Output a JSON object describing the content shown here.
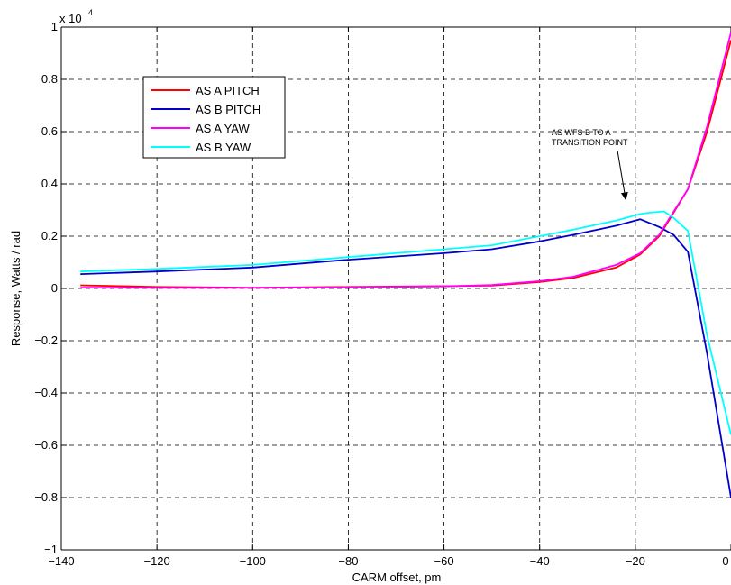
{
  "chart_data": {
    "type": "line",
    "xlabel": "CARM offset, pm",
    "ylabel": "Response, Watts / rad",
    "y_scale_label": "x 10",
    "y_scale_exponent": "4",
    "xlim": [
      -140,
      0
    ],
    "ylim": [
      -10000,
      10000
    ],
    "grid": true,
    "legend_position": "top-left",
    "x_ticks": [
      -140,
      -120,
      -100,
      -80,
      -60,
      -40,
      -20,
      0
    ],
    "x_tick_labels": [
      "−140",
      "−120",
      "−100",
      "−80",
      "−60",
      "−40",
      "−20",
      "0"
    ],
    "y_ticks": [
      -10000,
      -8000,
      -6000,
      -4000,
      -2000,
      0,
      2000,
      4000,
      6000,
      8000,
      10000
    ],
    "y_tick_labels": [
      "−1",
      "−0.8",
      "−0.6",
      "−0.4",
      "−0.2",
      "0",
      "0.2",
      "0.4",
      "0.6",
      "0.8",
      "1"
    ],
    "series": [
      {
        "name": "AS A PITCH",
        "color": "#ff0000",
        "points": [
          [
            -136,
            120
          ],
          [
            -120,
            60
          ],
          [
            -100,
            30
          ],
          [
            -80,
            60
          ],
          [
            -60,
            90
          ],
          [
            -50,
            110
          ],
          [
            -40,
            250
          ],
          [
            -33,
            400
          ],
          [
            -24,
            800
          ],
          [
            -19,
            1300
          ],
          [
            -15,
            2000
          ],
          [
            -13,
            2600
          ],
          [
            -9,
            3800
          ],
          [
            -5,
            6000
          ],
          [
            0,
            9500
          ]
        ]
      },
      {
        "name": "AS B PITCH",
        "color": "#0000cc",
        "points": [
          [
            -136,
            550
          ],
          [
            -120,
            650
          ],
          [
            -100,
            800
          ],
          [
            -80,
            1100
          ],
          [
            -60,
            1350
          ],
          [
            -50,
            1500
          ],
          [
            -40,
            1800
          ],
          [
            -33,
            2050
          ],
          [
            -24,
            2400
          ],
          [
            -19,
            2650
          ],
          [
            -15,
            2350
          ],
          [
            -12,
            2050
          ],
          [
            -9,
            1400
          ],
          [
            -5,
            -2500
          ],
          [
            0,
            -8000
          ]
        ]
      },
      {
        "name": "AS A YAW",
        "color": "#ff00ff",
        "points": [
          [
            -136,
            30
          ],
          [
            -120,
            20
          ],
          [
            -100,
            20
          ],
          [
            -80,
            40
          ],
          [
            -60,
            80
          ],
          [
            -50,
            130
          ],
          [
            -40,
            280
          ],
          [
            -33,
            450
          ],
          [
            -24,
            900
          ],
          [
            -19,
            1350
          ],
          [
            -15,
            2050
          ],
          [
            -13,
            2650
          ],
          [
            -9,
            3800
          ],
          [
            -5,
            6200
          ],
          [
            0,
            9800
          ]
        ]
      },
      {
        "name": "AS B YAW",
        "color": "#00ffff",
        "points": [
          [
            -136,
            650
          ],
          [
            -120,
            750
          ],
          [
            -100,
            900
          ],
          [
            -80,
            1200
          ],
          [
            -60,
            1500
          ],
          [
            -50,
            1650
          ],
          [
            -40,
            2000
          ],
          [
            -33,
            2250
          ],
          [
            -24,
            2600
          ],
          [
            -19,
            2850
          ],
          [
            -17,
            2900
          ],
          [
            -14,
            2950
          ],
          [
            -12,
            2700
          ],
          [
            -9,
            2200
          ],
          [
            -5,
            -1800
          ],
          [
            0,
            -5600
          ]
        ]
      }
    ],
    "annotation": {
      "lines": [
        "AS WFS B TO A",
        "TRANSITION POINT"
      ],
      "arrow_to": [
        -22,
        3400
      ]
    }
  }
}
